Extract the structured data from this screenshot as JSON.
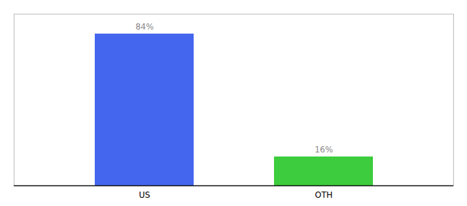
{
  "chart_data": {
    "type": "bar",
    "categories": [
      "US",
      "OTH"
    ],
    "values": [
      84,
      16
    ],
    "value_labels": [
      "84%",
      "16%"
    ],
    "colors": [
      "#4466ee",
      "#3dcc3d"
    ],
    "ylim": [
      0,
      95
    ],
    "data_labels": true,
    "tick_labels": "x",
    "grid": false
  }
}
